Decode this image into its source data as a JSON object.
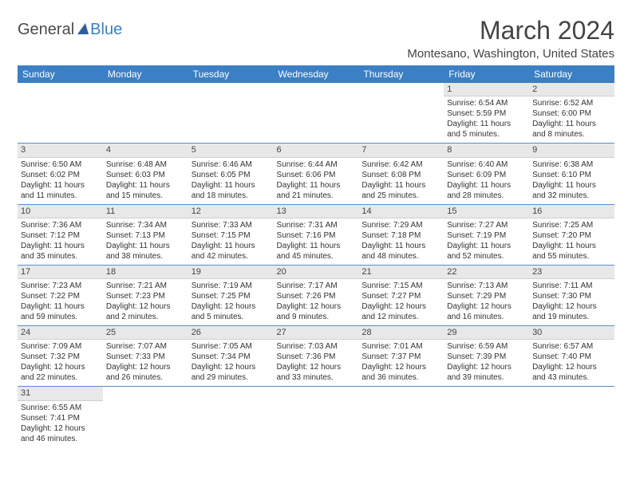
{
  "logo": {
    "main": "General",
    "accent": "Blue"
  },
  "title": "March 2024",
  "location": "Montesano, Washington, United States",
  "colors": {
    "header_bg": "#3b7fc4",
    "header_fg": "#ffffff",
    "daynum_bg": "#e8e8e8",
    "row_border": "#5a8fc9"
  },
  "day_headers": [
    "Sunday",
    "Monday",
    "Tuesday",
    "Wednesday",
    "Thursday",
    "Friday",
    "Saturday"
  ],
  "weeks": [
    [
      null,
      null,
      null,
      null,
      null,
      {
        "n": "1",
        "sr": "Sunrise: 6:54 AM",
        "ss": "Sunset: 5:59 PM",
        "dl1": "Daylight: 11 hours",
        "dl2": "and 5 minutes."
      },
      {
        "n": "2",
        "sr": "Sunrise: 6:52 AM",
        "ss": "Sunset: 6:00 PM",
        "dl1": "Daylight: 11 hours",
        "dl2": "and 8 minutes."
      }
    ],
    [
      {
        "n": "3",
        "sr": "Sunrise: 6:50 AM",
        "ss": "Sunset: 6:02 PM",
        "dl1": "Daylight: 11 hours",
        "dl2": "and 11 minutes."
      },
      {
        "n": "4",
        "sr": "Sunrise: 6:48 AM",
        "ss": "Sunset: 6:03 PM",
        "dl1": "Daylight: 11 hours",
        "dl2": "and 15 minutes."
      },
      {
        "n": "5",
        "sr": "Sunrise: 6:46 AM",
        "ss": "Sunset: 6:05 PM",
        "dl1": "Daylight: 11 hours",
        "dl2": "and 18 minutes."
      },
      {
        "n": "6",
        "sr": "Sunrise: 6:44 AM",
        "ss": "Sunset: 6:06 PM",
        "dl1": "Daylight: 11 hours",
        "dl2": "and 21 minutes."
      },
      {
        "n": "7",
        "sr": "Sunrise: 6:42 AM",
        "ss": "Sunset: 6:08 PM",
        "dl1": "Daylight: 11 hours",
        "dl2": "and 25 minutes."
      },
      {
        "n": "8",
        "sr": "Sunrise: 6:40 AM",
        "ss": "Sunset: 6:09 PM",
        "dl1": "Daylight: 11 hours",
        "dl2": "and 28 minutes."
      },
      {
        "n": "9",
        "sr": "Sunrise: 6:38 AM",
        "ss": "Sunset: 6:10 PM",
        "dl1": "Daylight: 11 hours",
        "dl2": "and 32 minutes."
      }
    ],
    [
      {
        "n": "10",
        "sr": "Sunrise: 7:36 AM",
        "ss": "Sunset: 7:12 PM",
        "dl1": "Daylight: 11 hours",
        "dl2": "and 35 minutes."
      },
      {
        "n": "11",
        "sr": "Sunrise: 7:34 AM",
        "ss": "Sunset: 7:13 PM",
        "dl1": "Daylight: 11 hours",
        "dl2": "and 38 minutes."
      },
      {
        "n": "12",
        "sr": "Sunrise: 7:33 AM",
        "ss": "Sunset: 7:15 PM",
        "dl1": "Daylight: 11 hours",
        "dl2": "and 42 minutes."
      },
      {
        "n": "13",
        "sr": "Sunrise: 7:31 AM",
        "ss": "Sunset: 7:16 PM",
        "dl1": "Daylight: 11 hours",
        "dl2": "and 45 minutes."
      },
      {
        "n": "14",
        "sr": "Sunrise: 7:29 AM",
        "ss": "Sunset: 7:18 PM",
        "dl1": "Daylight: 11 hours",
        "dl2": "and 48 minutes."
      },
      {
        "n": "15",
        "sr": "Sunrise: 7:27 AM",
        "ss": "Sunset: 7:19 PM",
        "dl1": "Daylight: 11 hours",
        "dl2": "and 52 minutes."
      },
      {
        "n": "16",
        "sr": "Sunrise: 7:25 AM",
        "ss": "Sunset: 7:20 PM",
        "dl1": "Daylight: 11 hours",
        "dl2": "and 55 minutes."
      }
    ],
    [
      {
        "n": "17",
        "sr": "Sunrise: 7:23 AM",
        "ss": "Sunset: 7:22 PM",
        "dl1": "Daylight: 11 hours",
        "dl2": "and 59 minutes."
      },
      {
        "n": "18",
        "sr": "Sunrise: 7:21 AM",
        "ss": "Sunset: 7:23 PM",
        "dl1": "Daylight: 12 hours",
        "dl2": "and 2 minutes."
      },
      {
        "n": "19",
        "sr": "Sunrise: 7:19 AM",
        "ss": "Sunset: 7:25 PM",
        "dl1": "Daylight: 12 hours",
        "dl2": "and 5 minutes."
      },
      {
        "n": "20",
        "sr": "Sunrise: 7:17 AM",
        "ss": "Sunset: 7:26 PM",
        "dl1": "Daylight: 12 hours",
        "dl2": "and 9 minutes."
      },
      {
        "n": "21",
        "sr": "Sunrise: 7:15 AM",
        "ss": "Sunset: 7:27 PM",
        "dl1": "Daylight: 12 hours",
        "dl2": "and 12 minutes."
      },
      {
        "n": "22",
        "sr": "Sunrise: 7:13 AM",
        "ss": "Sunset: 7:29 PM",
        "dl1": "Daylight: 12 hours",
        "dl2": "and 16 minutes."
      },
      {
        "n": "23",
        "sr": "Sunrise: 7:11 AM",
        "ss": "Sunset: 7:30 PM",
        "dl1": "Daylight: 12 hours",
        "dl2": "and 19 minutes."
      }
    ],
    [
      {
        "n": "24",
        "sr": "Sunrise: 7:09 AM",
        "ss": "Sunset: 7:32 PM",
        "dl1": "Daylight: 12 hours",
        "dl2": "and 22 minutes."
      },
      {
        "n": "25",
        "sr": "Sunrise: 7:07 AM",
        "ss": "Sunset: 7:33 PM",
        "dl1": "Daylight: 12 hours",
        "dl2": "and 26 minutes."
      },
      {
        "n": "26",
        "sr": "Sunrise: 7:05 AM",
        "ss": "Sunset: 7:34 PM",
        "dl1": "Daylight: 12 hours",
        "dl2": "and 29 minutes."
      },
      {
        "n": "27",
        "sr": "Sunrise: 7:03 AM",
        "ss": "Sunset: 7:36 PM",
        "dl1": "Daylight: 12 hours",
        "dl2": "and 33 minutes."
      },
      {
        "n": "28",
        "sr": "Sunrise: 7:01 AM",
        "ss": "Sunset: 7:37 PM",
        "dl1": "Daylight: 12 hours",
        "dl2": "and 36 minutes."
      },
      {
        "n": "29",
        "sr": "Sunrise: 6:59 AM",
        "ss": "Sunset: 7:39 PM",
        "dl1": "Daylight: 12 hours",
        "dl2": "and 39 minutes."
      },
      {
        "n": "30",
        "sr": "Sunrise: 6:57 AM",
        "ss": "Sunset: 7:40 PM",
        "dl1": "Daylight: 12 hours",
        "dl2": "and 43 minutes."
      }
    ],
    [
      {
        "n": "31",
        "sr": "Sunrise: 6:55 AM",
        "ss": "Sunset: 7:41 PM",
        "dl1": "Daylight: 12 hours",
        "dl2": "and 46 minutes."
      },
      null,
      null,
      null,
      null,
      null,
      null
    ]
  ]
}
